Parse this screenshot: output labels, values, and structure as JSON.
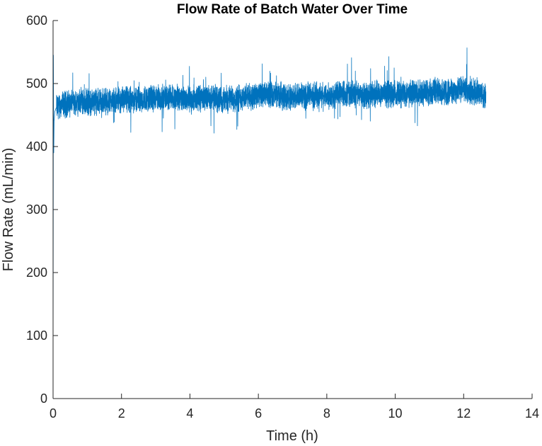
{
  "chart_data": {
    "type": "line",
    "title": "Flow Rate of Batch Water Over Time",
    "xlabel": "Time (h)",
    "ylabel": "Flow Rate (mL/min)",
    "xlim": [
      0,
      14
    ],
    "ylim": [
      0,
      600
    ],
    "xticks": [
      0,
      2,
      4,
      6,
      8,
      10,
      12,
      14
    ],
    "yticks": [
      0,
      100,
      200,
      300,
      400,
      500,
      600
    ],
    "grid": false,
    "line_color": "#0072BD",
    "series": [
      {
        "x": [
          0,
          0.01,
          0.02,
          0.03,
          0.05,
          0.08,
          0.1,
          0.2,
          0.4,
          0.6,
          0.8,
          1.0,
          1.5,
          2.0,
          2.5,
          3.0,
          3.5,
          4.0,
          4.5,
          5.0,
          5.5,
          6.0,
          6.5,
          7.0,
          7.5,
          8.0,
          8.5,
          9.0,
          9.5,
          10.0,
          10.5,
          11.0,
          11.5,
          12.0,
          12.3,
          12.5,
          12.65
        ],
        "y": [
          0,
          545,
          390,
          440,
          455,
          460,
          462,
          465,
          468,
          470,
          472,
          470,
          472,
          473,
          475,
          476,
          478,
          476,
          478,
          475,
          478,
          480,
          482,
          478,
          482,
          480,
          484,
          482,
          485,
          483,
          485,
          487,
          488,
          490,
          487,
          485,
          478
        ]
      }
    ]
  }
}
